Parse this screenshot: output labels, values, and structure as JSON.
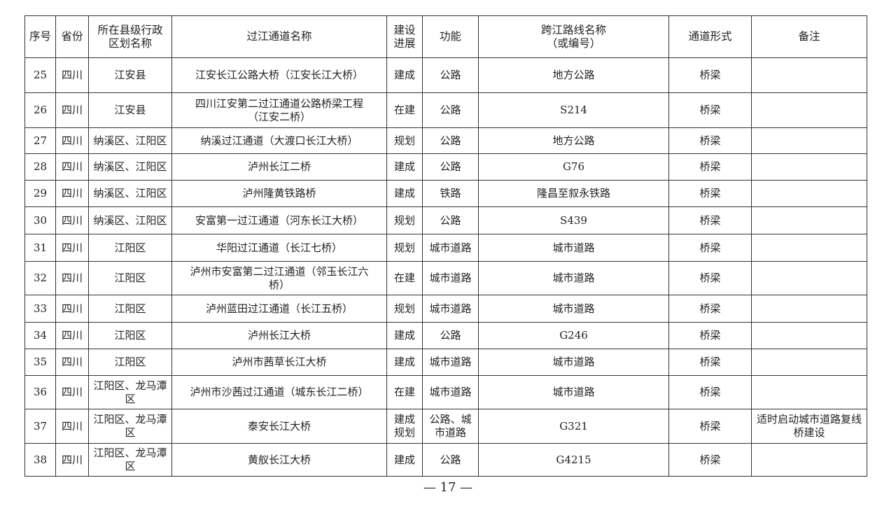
{
  "headers": [
    "序号",
    "省份",
    "所在县级行政区划名称",
    "过江通道名称",
    "建设进展",
    "功能",
    "跨江路线名称（或编号）",
    "通道形式",
    "备注"
  ],
  "rows": [
    {
      "no": "25",
      "province": "四川",
      "county": "江安县",
      "name": "江安长江公路大桥（江安长江大桥）",
      "progress": "建成",
      "function": "公路",
      "route": "地方公路",
      "form": "桥梁",
      "note": ""
    },
    {
      "no": "26",
      "province": "四川",
      "county": "江安县",
      "name": "四川江安第二过江通道公路桥梁工程（江安二桥）",
      "progress": "在建",
      "function": "公路",
      "route": "S214",
      "form": "桥梁",
      "note": ""
    },
    {
      "no": "27",
      "province": "四川",
      "county": "纳溪区、江阳区",
      "name": "纳溪过江通道（大渡口长江大桥）",
      "progress": "规划",
      "function": "公路",
      "route": "地方公路",
      "form": "桥梁",
      "note": ""
    },
    {
      "no": "28",
      "province": "四川",
      "county": "纳溪区、江阳区",
      "name": "泸州长江二桥",
      "progress": "建成",
      "function": "公路",
      "route": "G76",
      "form": "桥梁",
      "note": ""
    },
    {
      "no": "29",
      "province": "四川",
      "county": "纳溪区、江阳区",
      "name": "泸州隆黄铁路桥",
      "progress": "建成",
      "function": "铁路",
      "route": "隆昌至叙永铁路",
      "form": "桥梁",
      "note": ""
    },
    {
      "no": "30",
      "province": "四川",
      "county": "纳溪区、江阳区",
      "name": "安富第一过江通道（河东长江大桥）",
      "progress": "规划",
      "function": "公路",
      "route": "S439",
      "form": "桥梁",
      "note": ""
    },
    {
      "no": "31",
      "province": "四川",
      "county": "江阳区",
      "name": "华阳过江通道（长江七桥）",
      "progress": "规划",
      "function": "城市道路",
      "route": "城市道路",
      "form": "桥梁",
      "note": ""
    },
    {
      "no": "32",
      "province": "四川",
      "county": "江阳区",
      "name": "泸州市安富第二过江通道（邻玉长江六桥）",
      "progress": "在建",
      "function": "城市道路",
      "route": "城市道路",
      "form": "桥梁",
      "note": ""
    },
    {
      "no": "33",
      "province": "四川",
      "county": "江阳区",
      "name": "泸州蓝田过江通道（长江五桥）",
      "progress": "规划",
      "function": "城市道路",
      "route": "城市道路",
      "form": "桥梁",
      "note": ""
    },
    {
      "no": "34",
      "province": "四川",
      "county": "江阳区",
      "name": "泸州长江大桥",
      "progress": "建成",
      "function": "公路",
      "route": "G246",
      "form": "桥梁",
      "note": ""
    },
    {
      "no": "35",
      "province": "四川",
      "county": "江阳区",
      "name": "泸州市茜草长江大桥",
      "progress": "建成",
      "function": "城市道路",
      "route": "城市道路",
      "form": "桥梁",
      "note": ""
    },
    {
      "no": "36",
      "province": "四川",
      "county": "江阳区、龙马潭区",
      "name": "泸州市沙茜过江通道（城东长江二桥）",
      "progress": "在建",
      "function": "城市道路",
      "route": "城市道路",
      "form": "桥梁",
      "note": ""
    },
    {
      "no": "37",
      "province": "四川",
      "county": "江阳区、龙马潭区",
      "name": "泰安长江大桥",
      "progress": "建成规划",
      "function": "公路、城市道路",
      "route": "G321",
      "form": "桥梁",
      "note": "适时启动城市道路复线桥建设"
    },
    {
      "no": "38",
      "province": "四川",
      "county": "江阳区、龙马潭区",
      "name": "黄舣长江大桥",
      "progress": "建成",
      "function": "公路",
      "route": "G4215",
      "form": "桥梁",
      "note": ""
    }
  ],
  "page_number": "— 17 —"
}
